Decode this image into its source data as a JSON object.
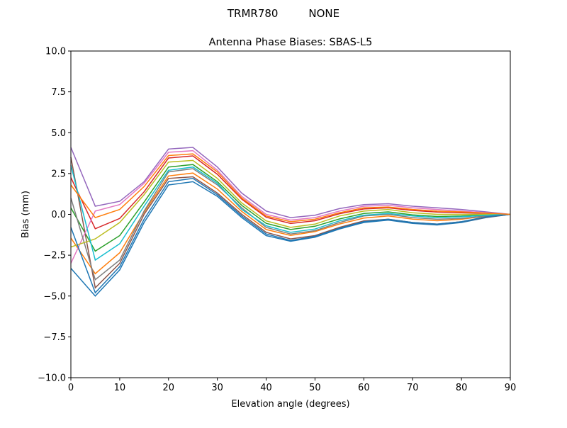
{
  "suptitle": "TRMR780         NONE",
  "chart_data": {
    "type": "line",
    "title": "Antenna Phase Biases: SBAS-L5",
    "xlabel": "Elevation angle (degrees)",
    "ylabel": "Bias (mm)",
    "xlim": [
      0,
      90
    ],
    "ylim": [
      -10,
      10
    ],
    "xticks": [
      0,
      10,
      20,
      30,
      40,
      50,
      60,
      70,
      80,
      90
    ],
    "yticks": [
      -10,
      -7.5,
      -5,
      -2.5,
      0,
      2.5,
      5,
      7.5,
      10
    ],
    "ytick_labels": [
      "−10.0",
      "−7.5",
      "−5.0",
      "−2.5",
      "0.0",
      "2.5",
      "5.0",
      "7.5",
      "10.0"
    ],
    "grid": false,
    "legend": "none",
    "colors": [
      "#1f77b4",
      "#ff7f0e",
      "#2ca02c",
      "#d62728",
      "#9467bd",
      "#8c564b",
      "#e377c2",
      "#7f7f7f",
      "#bcbd22",
      "#17becf"
    ],
    "x": [
      0,
      5,
      10,
      15,
      20,
      25,
      30,
      35,
      40,
      45,
      50,
      55,
      60,
      65,
      70,
      75,
      80,
      85,
      90
    ],
    "series": [
      {
        "values": [
          -3.3,
          -5.0,
          -3.4,
          -0.5,
          1.8,
          2.0,
          1.1,
          -0.2,
          -1.3,
          -1.65,
          -1.4,
          -0.9,
          -0.5,
          -0.35,
          -0.55,
          -0.65,
          -0.5,
          -0.2,
          0
        ]
      },
      {
        "values": [
          -1.45,
          -3.63,
          -2.35,
          0.13,
          2.35,
          2.53,
          1.55,
          0.18,
          -0.93,
          -1.29,
          -1.06,
          -0.59,
          -0.23,
          -0.1,
          -0.29,
          -0.39,
          -0.3,
          -0.11,
          0
        ]
      },
      {
        "values": [
          0.4,
          -2.25,
          -1.3,
          0.75,
          2.9,
          3.05,
          2.0,
          0.55,
          -0.55,
          -0.93,
          -0.73,
          -0.28,
          0.05,
          0.15,
          -0.03,
          -0.13,
          -0.1,
          -0.03,
          0
        ]
      },
      {
        "values": [
          2.25,
          -0.88,
          -0.25,
          1.38,
          3.45,
          3.58,
          2.45,
          0.93,
          -0.18,
          -0.56,
          -0.39,
          0.04,
          0.33,
          0.4,
          0.24,
          0.14,
          0.1,
          0.06,
          0
        ]
      },
      {
        "values": [
          4.1,
          0.5,
          0.8,
          2.0,
          4.0,
          4.1,
          2.9,
          1.3,
          0.2,
          -0.2,
          -0.05,
          0.35,
          0.6,
          0.65,
          0.5,
          0.4,
          0.3,
          0.15,
          0
        ]
      },
      {
        "values": [
          3.5,
          -4.5,
          -3.0,
          0.0,
          2.2,
          2.3,
          1.3,
          0.0,
          -1.1,
          -1.5,
          -1.3,
          -0.8,
          -0.4,
          -0.3,
          -0.5,
          -0.6,
          -0.45,
          -0.18,
          0
        ]
      },
      {
        "values": [
          -3.0,
          0.2,
          0.6,
          1.9,
          3.8,
          3.9,
          2.7,
          1.1,
          0.0,
          -0.35,
          -0.2,
          0.2,
          0.5,
          0.55,
          0.4,
          0.3,
          0.2,
          0.1,
          0
        ]
      },
      {
        "values": [
          1.0,
          -4.0,
          -2.8,
          0.2,
          2.6,
          2.8,
          1.8,
          0.4,
          -0.8,
          -1.2,
          -1.0,
          -0.5,
          -0.1,
          0.0,
          -0.2,
          -0.3,
          -0.25,
          -0.1,
          0
        ]
      },
      {
        "values": [
          -2.0,
          -1.5,
          -0.5,
          1.2,
          3.2,
          3.3,
          2.2,
          0.7,
          -0.4,
          -0.8,
          -0.6,
          -0.1,
          0.2,
          0.3,
          0.1,
          0.0,
          0.0,
          0.0,
          0
        ]
      },
      {
        "values": [
          3.0,
          -2.8,
          -1.8,
          0.5,
          2.7,
          2.9,
          1.9,
          0.3,
          -0.7,
          -1.1,
          -0.9,
          -0.4,
          -0.05,
          0.05,
          -0.1,
          -0.2,
          -0.15,
          -0.05,
          0
        ]
      },
      {
        "values": [
          -0.8,
          -4.8,
          -3.2,
          -0.3,
          2.0,
          2.2,
          1.2,
          -0.1,
          -1.2,
          -1.6,
          -1.35,
          -0.85,
          -0.45,
          -0.3,
          -0.5,
          -0.6,
          -0.45,
          -0.15,
          0
        ]
      },
      {
        "values": [
          1.8,
          -0.2,
          0.3,
          1.7,
          3.6,
          3.7,
          2.6,
          1.0,
          -0.1,
          -0.45,
          -0.3,
          0.1,
          0.4,
          0.45,
          0.3,
          0.2,
          0.15,
          0.08,
          0
        ]
      }
    ]
  }
}
